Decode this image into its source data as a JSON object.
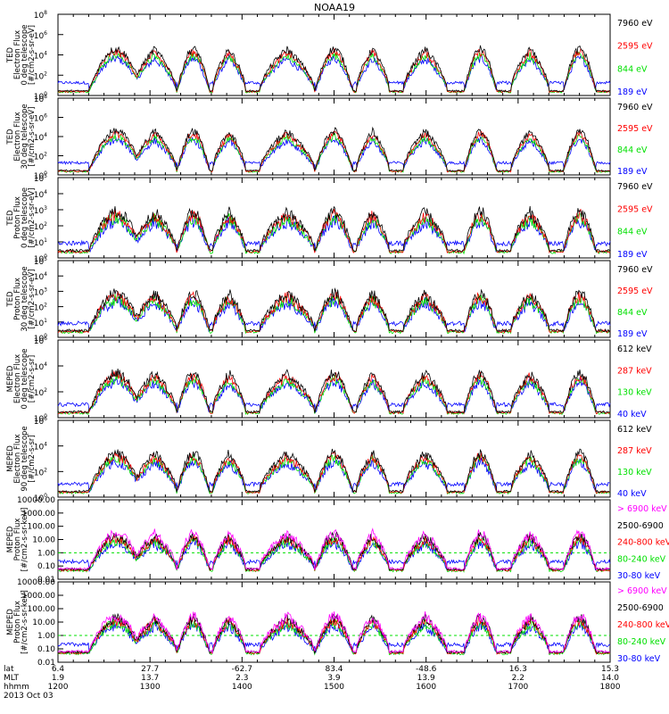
{
  "title": "NOAA19",
  "footer": {
    "rows": [
      {
        "label": "lat",
        "values": [
          "6.4",
          "27.7",
          "-62.7",
          "83.4",
          "-48.6",
          "16.3",
          "15.3"
        ]
      },
      {
        "label": "MLT",
        "values": [
          "1.9",
          "13.7",
          "2.3",
          "3.9",
          "13.9",
          "2.2",
          "14.0"
        ]
      },
      {
        "label": "hhmm",
        "values": [
          "1200",
          "1300",
          "1400",
          "1500",
          "1600",
          "1700",
          "1800"
        ]
      }
    ],
    "date": "2013 Oct 03"
  },
  "chart_data": [
    {
      "type": "line",
      "ylabel": [
        "TED",
        "Electron Flux",
        "0 deg telescope",
        "[#/cm2-s-sr-eV]"
      ],
      "ylog": true,
      "ylim_exp": [
        0,
        8
      ],
      "yticks_exp": [
        0,
        2,
        4,
        6,
        8
      ],
      "xlim": [
        "12:00",
        "18:00"
      ],
      "legend": [
        {
          "name": "7960 eV",
          "color": "#000000"
        },
        {
          "name": "2595 eV",
          "color": "#ff0000"
        },
        {
          "name": "844 eV",
          "color": "#00e000"
        },
        {
          "name": "189 eV",
          "color": "#0000ff"
        }
      ]
    },
    {
      "type": "line",
      "ylabel": [
        "TED",
        "Electron Flux",
        "30 deg telescope",
        "[#/cm2-s-sr-eV]"
      ],
      "ylog": true,
      "ylim_exp": [
        0,
        8
      ],
      "yticks_exp": [
        0,
        2,
        4,
        6,
        8
      ],
      "xlim": [
        "12:00",
        "18:00"
      ],
      "legend": [
        {
          "name": "7960 eV",
          "color": "#000000"
        },
        {
          "name": "2595 eV",
          "color": "#ff0000"
        },
        {
          "name": "844 eV",
          "color": "#00e000"
        },
        {
          "name": "189 eV",
          "color": "#0000ff"
        }
      ]
    },
    {
      "type": "line",
      "ylabel": [
        "TED",
        "Proton Flux",
        "0 deg telescope",
        "[#/cm2-s-sr-eV]"
      ],
      "ylog": true,
      "ylim_exp": [
        0,
        5
      ],
      "yticks_exp": [
        0,
        1,
        2,
        3,
        4,
        5
      ],
      "xlim": [
        "12:00",
        "18:00"
      ],
      "legend": [
        {
          "name": "7960 eV",
          "color": "#000000"
        },
        {
          "name": "2595 eV",
          "color": "#ff0000"
        },
        {
          "name": "844 eV",
          "color": "#00e000"
        },
        {
          "name": "189 eV",
          "color": "#0000ff"
        }
      ]
    },
    {
      "type": "line",
      "ylabel": [
        "TED",
        "Proton Flux",
        "30 deg telescope",
        "[#/cm2-s-sr-eV]"
      ],
      "ylog": true,
      "ylim_exp": [
        0,
        5
      ],
      "yticks_exp": [
        0,
        1,
        2,
        3,
        4,
        5
      ],
      "xlim": [
        "12:00",
        "18:00"
      ],
      "legend": [
        {
          "name": "7960 eV",
          "color": "#000000"
        },
        {
          "name": "2595 eV",
          "color": "#ff0000"
        },
        {
          "name": "844 eV",
          "color": "#00e000"
        },
        {
          "name": "189 eV",
          "color": "#0000ff"
        }
      ]
    },
    {
      "type": "line",
      "ylabel": [
        "MEPED",
        "Electron Flux",
        "0 deg telescope",
        "[#/cm2-s-sr]"
      ],
      "ylog": true,
      "ylim_exp": [
        0,
        6
      ],
      "yticks_exp": [
        0,
        2,
        4,
        6
      ],
      "xlim": [
        "12:00",
        "18:00"
      ],
      "legend": [
        {
          "name": "612 keV",
          "color": "#000000"
        },
        {
          "name": "287 keV",
          "color": "#ff0000"
        },
        {
          "name": "130 keV",
          "color": "#00e000"
        },
        {
          "name": "40 keV",
          "color": "#0000ff"
        }
      ]
    },
    {
      "type": "line",
      "ylabel": [
        "MEPED",
        "Electron Flux",
        "90 deg telescope",
        "[#/cm2-s-sr]"
      ],
      "ylog": true,
      "ylim_exp": [
        0,
        6
      ],
      "yticks_exp": [
        0,
        2,
        4,
        6
      ],
      "xlim": [
        "12:00",
        "18:00"
      ],
      "legend": [
        {
          "name": "612 keV",
          "color": "#000000"
        },
        {
          "name": "287 keV",
          "color": "#ff0000"
        },
        {
          "name": "130 keV",
          "color": "#00e000"
        },
        {
          "name": "40 keV",
          "color": "#0000ff"
        }
      ]
    },
    {
      "type": "line",
      "ylabel": [
        "MEPED",
        "Proton Flux",
        "[#/cm2-s-sr-keV]"
      ],
      "ylog": true,
      "yticks": [
        "0.01",
        "0.10",
        "1.00",
        "10.00",
        "100.00",
        "1000.00",
        "10000.00"
      ],
      "ytick_exp": [
        -2,
        -1,
        0,
        1,
        2,
        3,
        4
      ],
      "ylim_exp": [
        -2,
        4
      ],
      "xlim": [
        "12:00",
        "18:00"
      ],
      "legend": [
        {
          "name": "> 6900 keV",
          "color": "#ff00ff"
        },
        {
          "name": "2500-6900",
          "color": "#000000"
        },
        {
          "name": "240-800 keV",
          "color": "#ff0000"
        },
        {
          "name": "80-240 keV",
          "color": "#00e000"
        },
        {
          "name": "30-80 keV",
          "color": "#0000ff"
        }
      ]
    },
    {
      "type": "line",
      "ylabel": [
        "MEPED",
        "Proton Flux",
        "[#/cm2-s-sr-keV]"
      ],
      "ylog": true,
      "yticks": [
        "0.01",
        "0.10",
        "1.00",
        "10.00",
        "100.00",
        "1000.00",
        "10000.00"
      ],
      "ytick_exp": [
        -2,
        -1,
        0,
        1,
        2,
        3,
        4
      ],
      "ylim_exp": [
        -2,
        4
      ],
      "xlim": [
        "12:00",
        "18:00"
      ],
      "legend": [
        {
          "name": "> 6900 keV",
          "color": "#ff00ff"
        },
        {
          "name": "2500-6900",
          "color": "#000000"
        },
        {
          "name": "240-800 keV",
          "color": "#ff0000"
        },
        {
          "name": "80-240 keV",
          "color": "#00e000"
        },
        {
          "name": "30-80 keV",
          "color": "#0000ff"
        }
      ]
    }
  ]
}
